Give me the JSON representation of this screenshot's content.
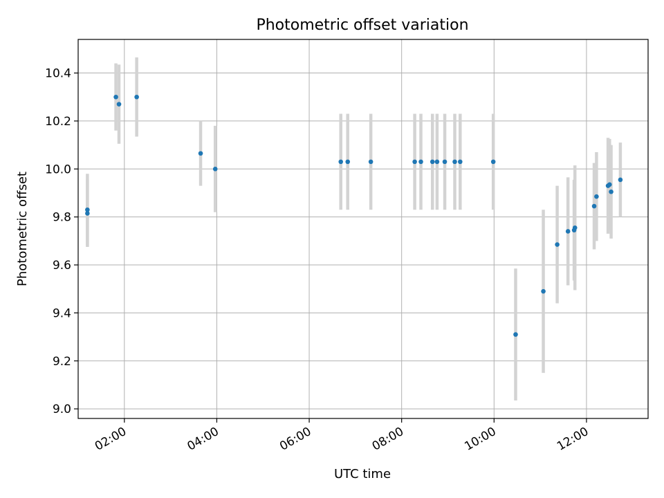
{
  "chart_data": {
    "type": "scatter",
    "title": "Photometric offset variation",
    "xlabel": "UTC time",
    "ylabel": "Photometric offset",
    "x_is_time": true,
    "xlim": [
      "01:00",
      "13:20"
    ],
    "ylim": [
      8.96,
      10.54
    ],
    "x_ticks": [
      "02:00",
      "04:00",
      "06:00",
      "08:00",
      "10:00",
      "12:00"
    ],
    "y_ticks": [
      9.0,
      9.2,
      9.4,
      9.6,
      9.8,
      10.0,
      10.2,
      10.4
    ],
    "grid": true,
    "colors": {
      "point": "#1f77b4",
      "errorbar": "#d3d3d3",
      "grid": "#b0b0b0"
    },
    "points": [
      {
        "x": "01:12",
        "y": 9.83,
        "yerr": 0.15
      },
      {
        "x": "01:12",
        "y": 9.815,
        "yerr": 0.14
      },
      {
        "x": "01:49",
        "y": 10.3,
        "yerr": 0.14
      },
      {
        "x": "01:53",
        "y": 10.27,
        "yerr": 0.165
      },
      {
        "x": "02:16",
        "y": 10.3,
        "yerr": 0.165
      },
      {
        "x": "03:39",
        "y": 10.065,
        "yerr": 0.135
      },
      {
        "x": "03:58",
        "y": 10.0,
        "yerr": 0.18
      },
      {
        "x": "06:41",
        "y": 10.03,
        "yerr": 0.2
      },
      {
        "x": "06:50",
        "y": 10.03,
        "yerr": 0.2
      },
      {
        "x": "07:20",
        "y": 10.03,
        "yerr": 0.2
      },
      {
        "x": "08:17",
        "y": 10.03,
        "yerr": 0.2
      },
      {
        "x": "08:25",
        "y": 10.03,
        "yerr": 0.2
      },
      {
        "x": "08:40",
        "y": 10.03,
        "yerr": 0.2
      },
      {
        "x": "08:46",
        "y": 10.03,
        "yerr": 0.2
      },
      {
        "x": "08:56",
        "y": 10.03,
        "yerr": 0.2
      },
      {
        "x": "09:09",
        "y": 10.03,
        "yerr": 0.2
      },
      {
        "x": "09:16",
        "y": 10.03,
        "yerr": 0.2
      },
      {
        "x": "09:59",
        "y": 10.03,
        "yerr": 0.2
      },
      {
        "x": "10:28",
        "y": 9.31,
        "yerr": 0.275
      },
      {
        "x": "11:04",
        "y": 9.49,
        "yerr": 0.34
      },
      {
        "x": "11:22",
        "y": 9.685,
        "yerr": 0.245
      },
      {
        "x": "11:36",
        "y": 9.74,
        "yerr": 0.225
      },
      {
        "x": "11:44",
        "y": 9.745,
        "yerr": 0.21
      },
      {
        "x": "11:45",
        "y": 9.755,
        "yerr": 0.26
      },
      {
        "x": "12:10",
        "y": 9.845,
        "yerr": 0.18
      },
      {
        "x": "12:13",
        "y": 9.885,
        "yerr": 0.185
      },
      {
        "x": "12:28",
        "y": 9.93,
        "yerr": 0.2
      },
      {
        "x": "12:30",
        "y": 9.935,
        "yerr": 0.19
      },
      {
        "x": "12:32",
        "y": 9.905,
        "yerr": 0.195
      },
      {
        "x": "12:44",
        "y": 9.955,
        "yerr": 0.155
      }
    ]
  }
}
